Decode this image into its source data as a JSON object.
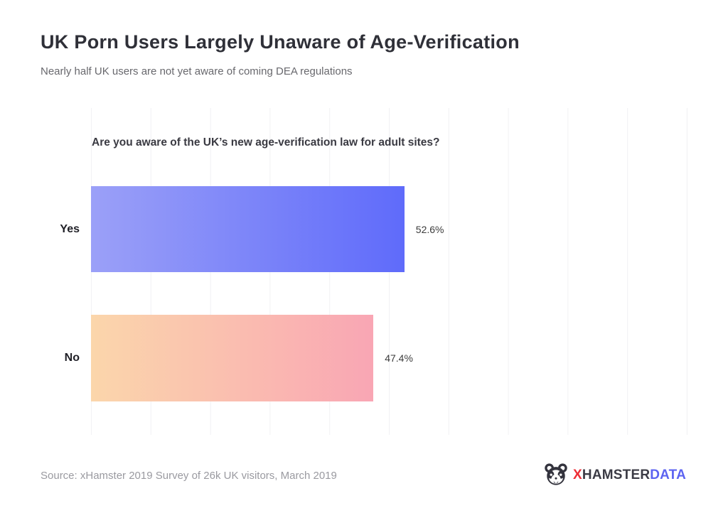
{
  "header": {
    "title": "UK Porn Users Largely Unaware of Age-Verification",
    "subtitle": "Nearly half UK users are not yet aware of coming DEA regulations"
  },
  "chart_data": {
    "type": "bar",
    "orientation": "horizontal",
    "title": "Are you aware of the UK’s new age-verification law for adult sites?",
    "categories": [
      "Yes",
      "No"
    ],
    "values": [
      52.6,
      47.4
    ],
    "value_labels": [
      "52.6%",
      "47.4%"
    ],
    "xlim": [
      0,
      100
    ],
    "grid": "vertical gridlines every 10%, no tick labels",
    "legend": "none",
    "bars": [
      {
        "label": "Yes",
        "value": 52.6,
        "value_label": "52.6%",
        "color_start": "#9ba0f8",
        "color_end": "#5f6bfa"
      },
      {
        "label": "No",
        "value": 47.4,
        "value_label": "47.4%",
        "color_start": "#fbd6ab",
        "color_end": "#f9a6b4"
      }
    ]
  },
  "footer": {
    "source": "Source: xHamster 2019 Survey of 26k UK visitors, March 2019",
    "logo": {
      "icon": "hamster-icon",
      "x": "X",
      "hamster": "HAMSTER",
      "data": "DATA",
      "x_color": "#ee2d35",
      "hamster_color": "#3b3b45",
      "data_color": "#5c63f1"
    }
  }
}
